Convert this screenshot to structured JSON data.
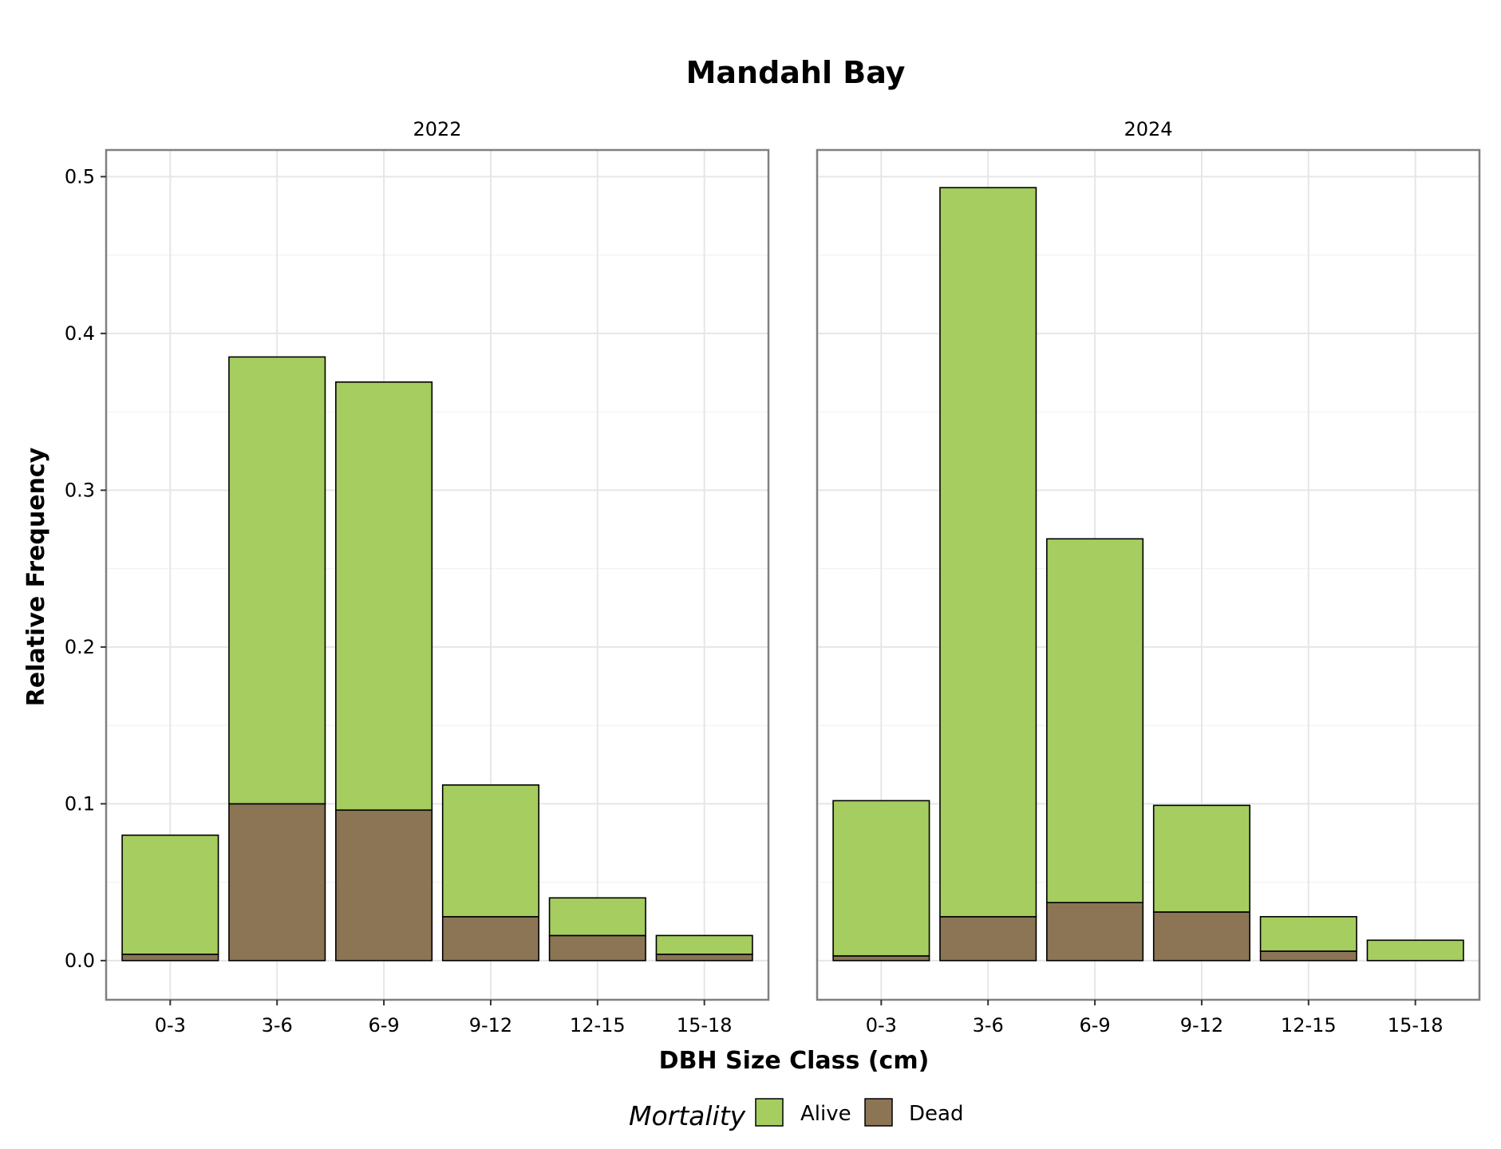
{
  "chart_data": {
    "type": "bar",
    "stacked": true,
    "title": "Mandahl Bay",
    "xlabel": "DBH Size Class (cm)",
    "ylabel": "Relative Frequency",
    "ylim": [
      -0.025,
      0.517
    ],
    "yticks": [
      0.0,
      0.1,
      0.2,
      0.3,
      0.4,
      0.5
    ],
    "ytick_labels": [
      "0.0",
      "0.1",
      "0.2",
      "0.3",
      "0.4",
      "0.5"
    ],
    "grid": true,
    "legend": {
      "title": "Mortality",
      "position": "bottom",
      "entries": [
        {
          "label": "Alive",
          "color": "#a5cd5f"
        },
        {
          "label": "Dead",
          "color": "#8b7555"
        }
      ]
    },
    "categories": [
      "0-3",
      "3-6",
      "6-9",
      "9-12",
      "12-15",
      "15-18"
    ],
    "panels": [
      {
        "label": "2022",
        "series": [
          {
            "name": "Dead",
            "values": [
              0.004,
              0.1,
              0.096,
              0.028,
              0.016,
              0.004
            ]
          },
          {
            "name": "Alive",
            "values": [
              0.076,
              0.285,
              0.273,
              0.084,
              0.024,
              0.012
            ]
          }
        ]
      },
      {
        "label": "2024",
        "series": [
          {
            "name": "Dead",
            "values": [
              0.003,
              0.028,
              0.037,
              0.031,
              0.006,
              0.0
            ]
          },
          {
            "name": "Alive",
            "values": [
              0.099,
              0.465,
              0.232,
              0.068,
              0.022,
              0.013
            ]
          }
        ]
      }
    ]
  }
}
